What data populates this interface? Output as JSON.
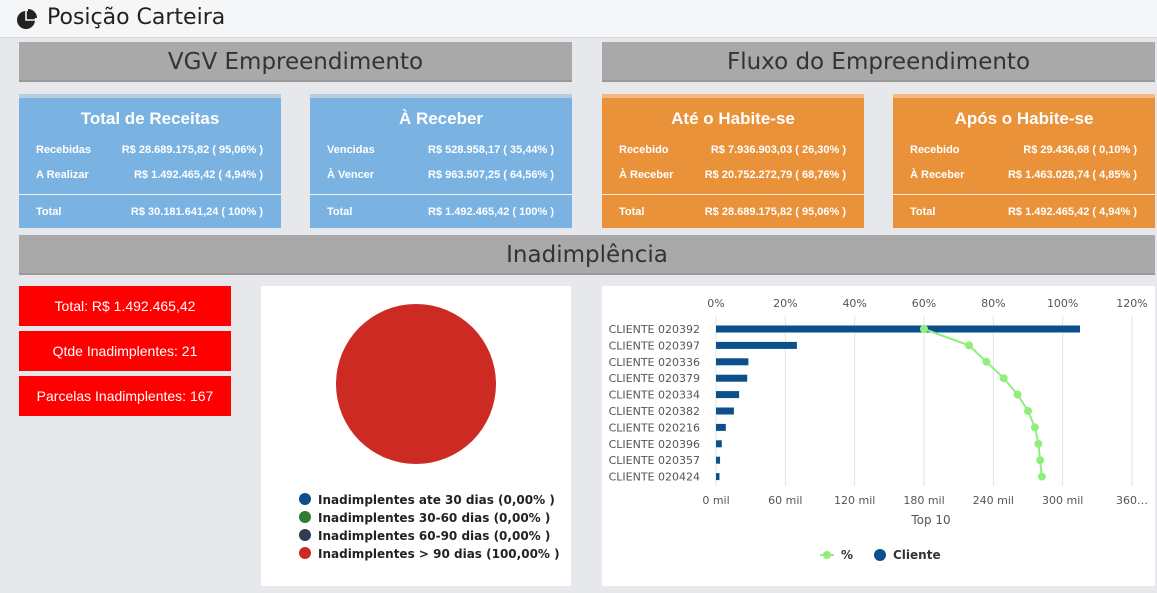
{
  "header": {
    "title": "Posição Carteira",
    "icon": "pie-chart-icon"
  },
  "sections": {
    "vgv": "VGV Empreendimento",
    "fluxo": "Fluxo do Empreendimento",
    "inad": "Inadimplência"
  },
  "cards": [
    {
      "title": "Total de Receitas",
      "rows": [
        {
          "label": "Recebidas",
          "value": "R$ 28.689.175,82 ( 95,06% )"
        },
        {
          "label": "A Realizar",
          "value": "R$ 1.492.465,42 ( 4,94% )"
        }
      ],
      "total": {
        "label": "Total",
        "value": "R$ 30.181.641,24 ( 100% )"
      }
    },
    {
      "title": "À Receber",
      "rows": [
        {
          "label": "Vencidas",
          "value": "R$ 528.958,17 ( 35,44% )"
        },
        {
          "label": "À Vencer",
          "value": "R$ 963.507,25 ( 64,56% )"
        }
      ],
      "total": {
        "label": "Total",
        "value": "R$ 1.492.465,42 ( 100% )"
      }
    },
    {
      "title": "Até o Habite-se",
      "rows": [
        {
          "label": "Recebido",
          "value": "R$ 7.936.903,03 ( 26,30% )"
        },
        {
          "label": "À Receber",
          "value": "R$ 20.752.272,79 ( 68,76% )"
        }
      ],
      "total": {
        "label": "Total",
        "value": "R$ 28.689.175,82 ( 95,06% )"
      }
    },
    {
      "title": "Após o Habite-se",
      "rows": [
        {
          "label": "Recebido",
          "value": "R$ 29.436,68 ( 0,10% )"
        },
        {
          "label": "À Receber",
          "value": "R$ 1.463.028,74 ( 4,85% )"
        }
      ],
      "total": {
        "label": "Total",
        "value": "R$ 1.492.465,42 ( 4,94% )"
      }
    }
  ],
  "inadimplencia": {
    "total": "Total: R$ 1.492.465,42",
    "qtde": "Qtde Inadimplentes: 21",
    "parcelas": "Parcelas Inadimplentes: 167"
  },
  "colors": {
    "blue": "#7ab2e2",
    "orange": "#e9923a",
    "red": "#ff0000",
    "bar": "#0b4f8c",
    "line": "#90ee7e"
  },
  "chart_data": [
    {
      "type": "pie",
      "labels": [
        "Inadimplentes ate 30 dias (0,00% )",
        "Inadimplentes 30-60 dias (0,00% )",
        "Inadimplentes 60-90 dias (0,00% )",
        "Inadimplentes > 90 dias (100,00% )"
      ],
      "values": [
        0,
        0,
        0,
        100
      ],
      "colors": [
        "#0b4f8c",
        "#2e7d32",
        "#2c3e50",
        "#cc2a23"
      ],
      "legend": "bottom"
    },
    {
      "type": "bar",
      "orientation": "horizontal",
      "categories": [
        "CLIENTE 020392",
        "CLIENTE 020397",
        "CLIENTE 020336",
        "CLIENTE 020379",
        "CLIENTE 020334",
        "CLIENTE 020382",
        "CLIENTE 020216",
        "CLIENTE 020396",
        "CLIENTE 020357",
        "CLIENTE 020424"
      ],
      "series": [
        {
          "name": "Cliente",
          "type": "bar",
          "values": [
            315000,
            70000,
            28000,
            27000,
            20000,
            15500,
            8500,
            5000,
            3500,
            3000
          ]
        },
        {
          "name": "%",
          "type": "line",
          "values": [
            60,
            73,
            78,
            83,
            87,
            90,
            92,
            93,
            93.5,
            94
          ]
        }
      ],
      "xlabel": "Top 10",
      "xticks": [
        "0 mil",
        "60 mil",
        "120 mil",
        "180 mil",
        "240 mil",
        "300 mil",
        "360…"
      ],
      "xlim": [
        0,
        360000
      ],
      "pct_ticks": [
        "0%",
        "20%",
        "40%",
        "60%",
        "80%",
        "100%",
        "120%"
      ],
      "pct_lim": [
        0,
        120
      ],
      "legend": "bottom",
      "grid": true
    }
  ]
}
